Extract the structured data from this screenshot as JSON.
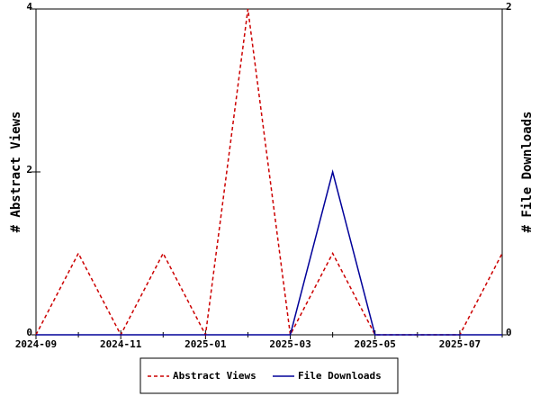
{
  "chart_data": {
    "type": "line",
    "categories": [
      "2024-09",
      null,
      "2024-11",
      null,
      "2025-01",
      null,
      "2025-03",
      null,
      "2025-05",
      null,
      "2025-07",
      null
    ],
    "ylabel": "# Abstract Views",
    "y2label": "# File Downloads",
    "ylim": [
      0,
      4
    ],
    "yticks": [
      0,
      2,
      4
    ],
    "y2lim": [
      0,
      2
    ],
    "y2ticks": [
      0,
      2
    ],
    "legend": "bottom",
    "series": [
      {
        "name": "Abstract Views",
        "color": "#cc0000",
        "dashed": true,
        "values": [
          0,
          1,
          0,
          1,
          0,
          4,
          0,
          1,
          0,
          0,
          0,
          1
        ]
      },
      {
        "name": "File Downloads",
        "color": "#000099",
        "axis": "y2",
        "values": [
          0,
          0,
          0,
          0,
          0,
          0,
          0,
          1,
          0,
          0,
          0,
          0
        ]
      }
    ]
  }
}
